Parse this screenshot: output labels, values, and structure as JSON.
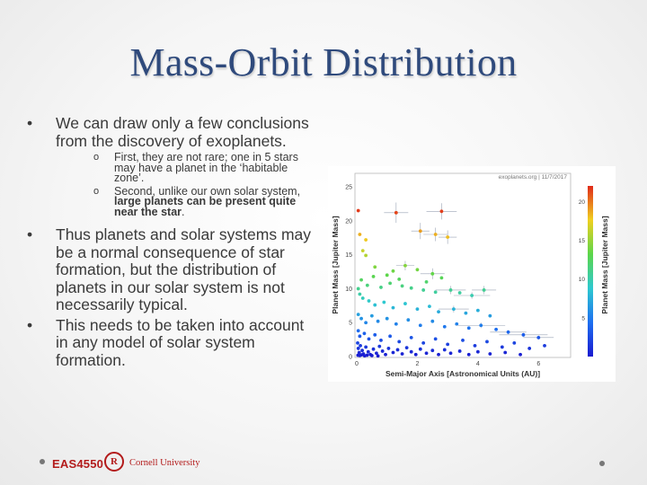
{
  "slide": {
    "title": "Mass-Orbit Distribution",
    "bullets": [
      {
        "text": "We can draw only a few conclusions from the discovery of exoplanets.",
        "sub": [
          {
            "text": "First, they are not rare; one in 5 stars may have a planet in the ‘habitable zone’.",
            "bold": ""
          },
          {
            "text": "Second, unlike our own solar system, ",
            "bold": "large planets can be present quite near the star",
            "tail": "."
          }
        ]
      },
      {
        "text": "Thus planets and solar systems may be a normal consequence of star formation, but the distribution of planets in our solar system is not necessarily typical."
      },
      {
        "text": "This needs to be taken into account in any model of solar system formation."
      }
    ],
    "bullet_symbol": "•",
    "sub_bullet_symbol": "o"
  },
  "footer": {
    "course": "EAS4550",
    "university": "Cornell University",
    "seal_letter": "R"
  },
  "chart_data": {
    "type": "scatter",
    "credit": "exoplanets.org | 11/7/2017",
    "xlabel": "Semi-Major Axis [Astronomical Units (AU)]",
    "ylabel": "Planet Mass [Jupiter Mass]",
    "colorbar_label": "Planet Mass [Jupiter Mass]",
    "xlim": [
      0,
      7
    ],
    "ylim": [
      0,
      27
    ],
    "xticks": [
      0,
      2,
      4,
      6
    ],
    "yticks": [
      0,
      5,
      10,
      15,
      20,
      25
    ],
    "colorbar_ticks": [
      5,
      10,
      15,
      20
    ],
    "colorbar_range": [
      0,
      22
    ],
    "colors": {
      "low": "#1a2cc8",
      "mid": "#29c7c9",
      "high": "#e33b1f",
      "errorbar": "#9aa3b5"
    },
    "points": [
      [
        1.3,
        21.2,
        0.4,
        1.5
      ],
      [
        2.8,
        21.4,
        0.5,
        1.2
      ],
      [
        2.1,
        18.5,
        0.3,
        1.2
      ],
      [
        2.6,
        18.0,
        0.4,
        1.0
      ],
      [
        3.0,
        17.6,
        0.3,
        1.0
      ],
      [
        0.05,
        21.5,
        0,
        0
      ],
      [
        0.1,
        18.0,
        0,
        0
      ],
      [
        0.3,
        17.2,
        0,
        0
      ],
      [
        0.2,
        15.6,
        0,
        0
      ],
      [
        0.3,
        14.9,
        0,
        0
      ],
      [
        0.6,
        13.2,
        0,
        0
      ],
      [
        1.0,
        12.0,
        0,
        0
      ],
      [
        1.2,
        12.6,
        0,
        0
      ],
      [
        1.4,
        11.4,
        0,
        0
      ],
      [
        1.6,
        13.4,
        0.3,
        0.7
      ],
      [
        2.0,
        12.8,
        0,
        0
      ],
      [
        2.3,
        11.0,
        0,
        0
      ],
      [
        2.5,
        12.2,
        0.4,
        0.8
      ],
      [
        2.8,
        11.6,
        0,
        0
      ],
      [
        0.15,
        11.3,
        0,
        0
      ],
      [
        0.35,
        10.5,
        0,
        0
      ],
      [
        0.55,
        11.8,
        0,
        0
      ],
      [
        0.8,
        10.2,
        0,
        0
      ],
      [
        1.1,
        10.8,
        0,
        0
      ],
      [
        1.5,
        10.4,
        0,
        0
      ],
      [
        1.8,
        10.1,
        0,
        0
      ],
      [
        2.2,
        9.8,
        0,
        0
      ],
      [
        2.6,
        9.5,
        0,
        0
      ],
      [
        3.1,
        9.8,
        0.5,
        0.6
      ],
      [
        3.4,
        9.4,
        0,
        0
      ],
      [
        3.8,
        9.0,
        0.6,
        0.5
      ],
      [
        4.2,
        9.8,
        0.4,
        0.6
      ],
      [
        0.05,
        10.0,
        0,
        0
      ],
      [
        0.1,
        9.2,
        0,
        0
      ],
      [
        0.2,
        8.6,
        0,
        0
      ],
      [
        0.4,
        8.2,
        0,
        0
      ],
      [
        0.6,
        7.6,
        0,
        0
      ],
      [
        0.9,
        8.0,
        0,
        0
      ],
      [
        1.2,
        7.2,
        0,
        0
      ],
      [
        1.6,
        7.8,
        0,
        0
      ],
      [
        2.0,
        7.0,
        0,
        0
      ],
      [
        2.4,
        7.4,
        0,
        0
      ],
      [
        2.7,
        6.6,
        0,
        0
      ],
      [
        3.2,
        7.0,
        0.5,
        0.5
      ],
      [
        3.6,
        6.4,
        0,
        0
      ],
      [
        4.0,
        6.8,
        0,
        0
      ],
      [
        4.4,
        6.0,
        0,
        0
      ],
      [
        0.05,
        6.2,
        0,
        0
      ],
      [
        0.15,
        5.6,
        0,
        0
      ],
      [
        0.3,
        5.0,
        0,
        0
      ],
      [
        0.5,
        6.0,
        0,
        0
      ],
      [
        0.7,
        5.2,
        0,
        0
      ],
      [
        1.0,
        5.6,
        0,
        0
      ],
      [
        1.3,
        4.8,
        0,
        0
      ],
      [
        1.7,
        5.4,
        0,
        0
      ],
      [
        2.1,
        4.6,
        0,
        0
      ],
      [
        2.5,
        5.2,
        0,
        0
      ],
      [
        2.9,
        4.4,
        0,
        0
      ],
      [
        3.3,
        4.8,
        0,
        0
      ],
      [
        3.7,
        4.2,
        0,
        0
      ],
      [
        4.1,
        4.6,
        0.8,
        0.4
      ],
      [
        4.6,
        4.0,
        0,
        0
      ],
      [
        5.0,
        3.6,
        0.6,
        0.3
      ],
      [
        5.5,
        3.2,
        0.8,
        0.3
      ],
      [
        6.0,
        2.8,
        0.5,
        0.3
      ],
      [
        0.05,
        3.8,
        0,
        0
      ],
      [
        0.1,
        3.0,
        0,
        0
      ],
      [
        0.25,
        3.4,
        0,
        0
      ],
      [
        0.4,
        2.6,
        0,
        0
      ],
      [
        0.6,
        3.2,
        0,
        0
      ],
      [
        0.8,
        2.4,
        0,
        0
      ],
      [
        1.1,
        3.0,
        0,
        0
      ],
      [
        1.4,
        2.2,
        0,
        0
      ],
      [
        1.8,
        2.8,
        0,
        0
      ],
      [
        2.2,
        2.0,
        0,
        0
      ],
      [
        2.6,
        2.6,
        0,
        0
      ],
      [
        3.0,
        1.8,
        0,
        0
      ],
      [
        3.5,
        2.4,
        0,
        0
      ],
      [
        3.9,
        1.6,
        0,
        0
      ],
      [
        4.3,
        2.2,
        0,
        0
      ],
      [
        4.8,
        1.4,
        0,
        0
      ],
      [
        5.2,
        2.0,
        0,
        0
      ],
      [
        5.7,
        1.2,
        0,
        0
      ],
      [
        6.2,
        1.6,
        0,
        0
      ],
      [
        0.03,
        2.0,
        0,
        0
      ],
      [
        0.05,
        1.2,
        0,
        0
      ],
      [
        0.08,
        0.6,
        0,
        0
      ],
      [
        0.12,
        1.6,
        0,
        0
      ],
      [
        0.18,
        0.9,
        0,
        0
      ],
      [
        0.22,
        0.4,
        0,
        0
      ],
      [
        0.3,
        1.4,
        0,
        0
      ],
      [
        0.38,
        0.7,
        0,
        0
      ],
      [
        0.45,
        0.3,
        0,
        0
      ],
      [
        0.55,
        1.1,
        0,
        0
      ],
      [
        0.65,
        0.5,
        0,
        0
      ],
      [
        0.75,
        1.5,
        0,
        0
      ],
      [
        0.85,
        0.8,
        0,
        0
      ],
      [
        0.95,
        0.3,
        0,
        0
      ],
      [
        1.05,
        1.2,
        0,
        0
      ],
      [
        1.2,
        0.6,
        0,
        0
      ],
      [
        1.35,
        1.0,
        0,
        0
      ],
      [
        1.5,
        0.4,
        0,
        0
      ],
      [
        1.65,
        1.3,
        0,
        0
      ],
      [
        1.8,
        0.7,
        0,
        0
      ],
      [
        1.95,
        0.3,
        0,
        0
      ],
      [
        2.1,
        1.1,
        0,
        0
      ],
      [
        2.3,
        0.5,
        0,
        0
      ],
      [
        2.5,
        0.9,
        0,
        0
      ],
      [
        2.7,
        0.3,
        0,
        0
      ],
      [
        2.9,
        1.0,
        0,
        0
      ],
      [
        3.1,
        0.5,
        0,
        0
      ],
      [
        3.4,
        0.8,
        0,
        0
      ],
      [
        3.7,
        0.3,
        0,
        0
      ],
      [
        4.0,
        0.7,
        0,
        0
      ],
      [
        4.4,
        0.4,
        0,
        0
      ],
      [
        4.9,
        0.6,
        0,
        0
      ],
      [
        5.4,
        0.3,
        0,
        0
      ],
      [
        0.04,
        0.2,
        0,
        0
      ],
      [
        0.1,
        0.15,
        0,
        0
      ],
      [
        0.16,
        0.25,
        0,
        0
      ],
      [
        0.26,
        0.12,
        0,
        0
      ],
      [
        0.34,
        0.2,
        0,
        0
      ],
      [
        0.5,
        0.15,
        0,
        0
      ],
      [
        0.7,
        0.1,
        0,
        0
      ]
    ]
  }
}
